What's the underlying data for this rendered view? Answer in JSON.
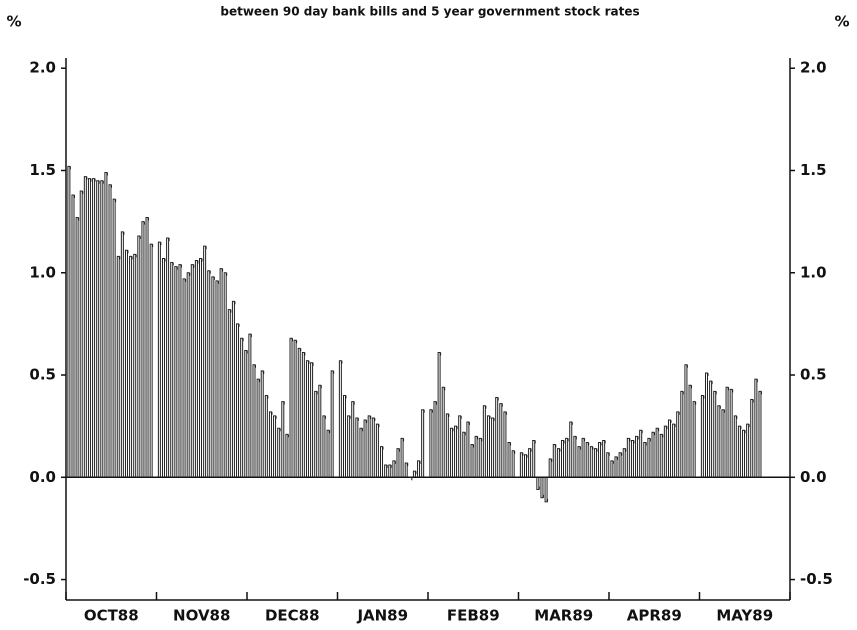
{
  "chart_data": {
    "type": "bar",
    "title": "between 90 day bank bills and 5 year government stock rates",
    "ylabel": "%",
    "categories": [
      "OCT88",
      "NOV88",
      "DEC88",
      "JAN89",
      "FEB89",
      "MAR89",
      "APR89",
      "MAY89"
    ],
    "values": [
      [
        1.52,
        1.38,
        1.27,
        1.4,
        1.47,
        1.46,
        1.46,
        1.45,
        1.45,
        1.49,
        1.43,
        1.36,
        1.08,
        1.2,
        1.11,
        1.08,
        1.09,
        1.18,
        1.25,
        1.27,
        1.14
      ],
      [
        1.15,
        1.07,
        1.17,
        1.05,
        1.03,
        1.04,
        0.97,
        1.0,
        1.04,
        1.06,
        1.07,
        1.13,
        1.01,
        0.98,
        0.96,
        1.02,
        1.0,
        0.82,
        0.86,
        0.75,
        0.68,
        0.62
      ],
      [
        0.7,
        0.55,
        0.48,
        0.52,
        0.4,
        0.32,
        0.3,
        0.24,
        0.37,
        0.21,
        0.68,
        0.67,
        0.63,
        0.61,
        0.57,
        0.56,
        0.42,
        0.45,
        0.3,
        0.23,
        0.52
      ],
      [
        0.57,
        0.4,
        0.3,
        0.37,
        0.29,
        0.24,
        0.28,
        0.3,
        0.29,
        0.26,
        0.15,
        0.06,
        0.06,
        0.08,
        0.14,
        0.19,
        0.07,
        0.0,
        0.03,
        0.08,
        0.33
      ],
      [
        0.33,
        0.37,
        0.61,
        0.44,
        0.31,
        0.24,
        0.25,
        0.3,
        0.22,
        0.27,
        0.16,
        0.2,
        0.19,
        0.35,
        0.3,
        0.29,
        0.39,
        0.36,
        0.32,
        0.17,
        0.13
      ],
      [
        0.12,
        0.11,
        0.14,
        0.18,
        -0.06,
        -0.1,
        -0.12,
        0.09,
        0.16,
        0.14,
        0.18,
        0.19,
        0.27,
        0.2,
        0.15,
        0.19,
        0.17,
        0.15,
        0.14,
        0.17,
        0.18,
        0.12
      ],
      [
        0.08,
        0.1,
        0.12,
        0.14,
        0.19,
        0.18,
        0.2,
        0.23,
        0.17,
        0.19,
        0.22,
        0.24,
        0.21,
        0.25,
        0.28,
        0.26,
        0.32,
        0.42,
        0.55,
        0.45,
        0.37
      ],
      [
        0.4,
        0.51,
        0.47,
        0.42,
        0.35,
        0.33,
        0.44,
        0.43,
        0.3,
        0.25,
        0.23,
        0.26,
        0.38,
        0.48,
        0.42
      ]
    ],
    "color": "#222222",
    "ylim": [
      -0.6,
      2.05
    ],
    "yticks": [
      {
        "value": 2,
        "label": "2.0"
      },
      1.5,
      {
        "value": 1,
        "label": "1.0"
      },
      0.5,
      {
        "value": 0,
        "label": "0.0"
      },
      -0.5
    ]
  }
}
